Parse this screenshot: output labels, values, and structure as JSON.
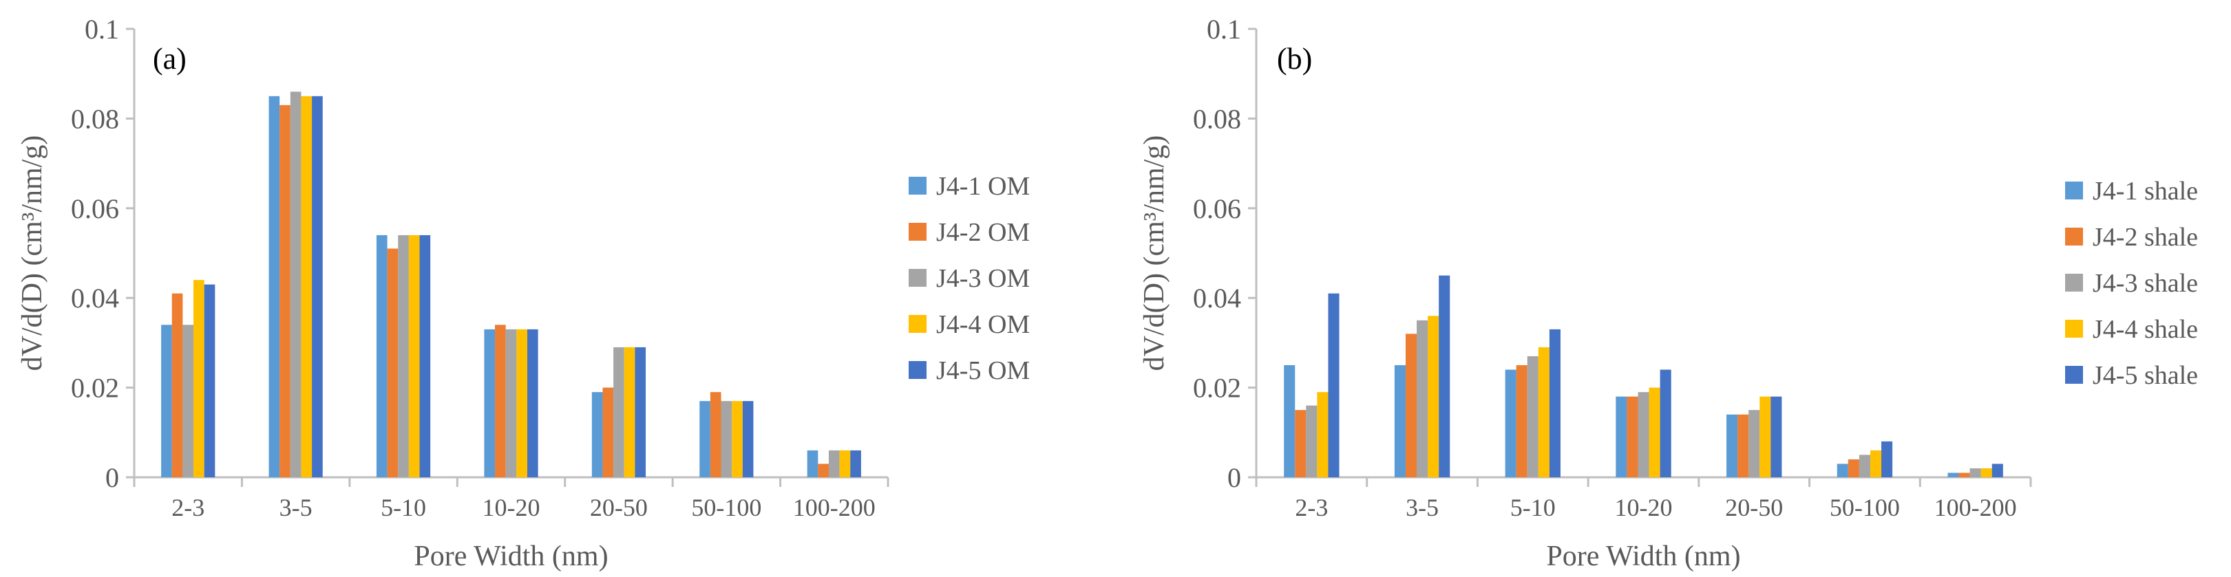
{
  "colors": {
    "J4-1": "#5b9bd5",
    "J4-2": "#ed7d31",
    "J4-3": "#a5a5a5",
    "J4-4": "#ffc000",
    "J4-5": "#4472c4",
    "axis": "#bfbfbf",
    "text": "#595959"
  },
  "chart_data": [
    {
      "type": "bar",
      "panel_label": "(a)",
      "categories": [
        "2-3",
        "3-5",
        "5-10",
        "10-20",
        "20-50",
        "50-100",
        "100-200"
      ],
      "series": [
        {
          "name": "J4-1 OM",
          "values": [
            0.034,
            0.085,
            0.054,
            0.033,
            0.019,
            0.017,
            0.006
          ]
        },
        {
          "name": "J4-2 OM",
          "values": [
            0.041,
            0.083,
            0.051,
            0.034,
            0.02,
            0.019,
            0.003
          ]
        },
        {
          "name": "J4-3 OM",
          "values": [
            0.034,
            0.086,
            0.054,
            0.033,
            0.029,
            0.017,
            0.006
          ]
        },
        {
          "name": "J4-4 OM",
          "values": [
            0.044,
            0.085,
            0.054,
            0.033,
            0.029,
            0.017,
            0.006
          ]
        },
        {
          "name": "J4-5 OM",
          "values": [
            0.043,
            0.085,
            0.054,
            0.033,
            0.029,
            0.017,
            0.006
          ]
        }
      ],
      "xlabel": "Pore Width (nm)",
      "ylabel": "dV/d(D) (cm³/nm/g)",
      "ylim": [
        0,
        0.1
      ],
      "yticks": [
        "0",
        "0.02",
        "0.04",
        "0.06",
        "0.08",
        "0.1"
      ],
      "legend_position": "right"
    },
    {
      "type": "bar",
      "panel_label": "(b)",
      "categories": [
        "2-3",
        "3-5",
        "5-10",
        "10-20",
        "20-50",
        "50-100",
        "100-200"
      ],
      "series": [
        {
          "name": "J4-1 shale",
          "values": [
            0.025,
            0.025,
            0.024,
            0.018,
            0.014,
            0.003,
            0.001
          ]
        },
        {
          "name": "J4-2 shale",
          "values": [
            0.015,
            0.032,
            0.025,
            0.018,
            0.014,
            0.004,
            0.001
          ]
        },
        {
          "name": "J4-3 shale",
          "values": [
            0.016,
            0.035,
            0.027,
            0.019,
            0.015,
            0.005,
            0.002
          ]
        },
        {
          "name": "J4-4 shale",
          "values": [
            0.019,
            0.036,
            0.029,
            0.02,
            0.018,
            0.006,
            0.002
          ]
        },
        {
          "name": "J4-5 shale",
          "values": [
            0.041,
            0.045,
            0.033,
            0.024,
            0.018,
            0.008,
            0.003
          ]
        }
      ],
      "xlabel": "Pore Width (nm)",
      "ylabel": "dV/d(D) (cm³/nm/g)",
      "ylim": [
        0,
        0.1
      ],
      "yticks": [
        "0",
        "0.02",
        "0.04",
        "0.06",
        "0.08",
        "0.1"
      ],
      "legend_position": "right"
    }
  ]
}
